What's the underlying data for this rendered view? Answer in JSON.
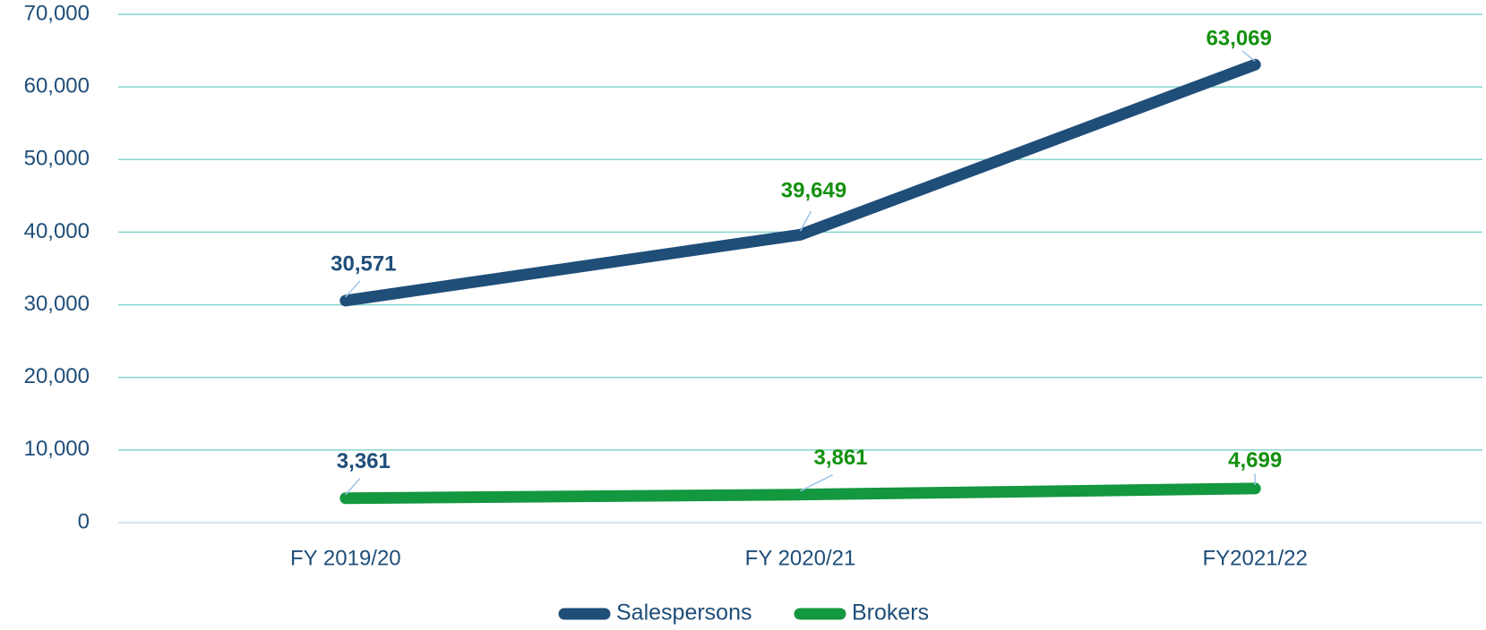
{
  "chart_data": {
    "type": "line",
    "categories": [
      "FY 2019/20",
      "FY 2020/21",
      "FY2021/22"
    ],
    "series": [
      {
        "name": "Salespersons",
        "color": "#1f4e79",
        "values": [
          30571,
          39649,
          63069
        ],
        "value_labels": [
          "30,571",
          "39,649",
          "63,069"
        ],
        "label_colors": [
          "#1f4e79",
          "#14910f",
          "#14910f"
        ]
      },
      {
        "name": "Brokers",
        "color": "#13973f",
        "values": [
          3361,
          3861,
          4699
        ],
        "value_labels": [
          "3,361",
          "3,861",
          "4,699"
        ],
        "label_colors": [
          "#1f4e79",
          "#14910f",
          "#14910f"
        ]
      }
    ],
    "ylim": [
      0,
      70000
    ],
    "yticks": [
      0,
      {
        "value": 10000,
        "label": "10,000"
      },
      {
        "value": 20000,
        "label": "20,000"
      },
      {
        "value": 30000,
        "label": "30,000"
      },
      {
        "value": 40000,
        "label": "40,000"
      },
      {
        "value": 50000,
        "label": "50,000"
      },
      {
        "value": 60000,
        "label": "60,000"
      },
      {
        "value": 70000,
        "label": "70,000"
      }
    ],
    "grid": true,
    "grid_color": "#86d4cc",
    "legend": "bottom"
  }
}
